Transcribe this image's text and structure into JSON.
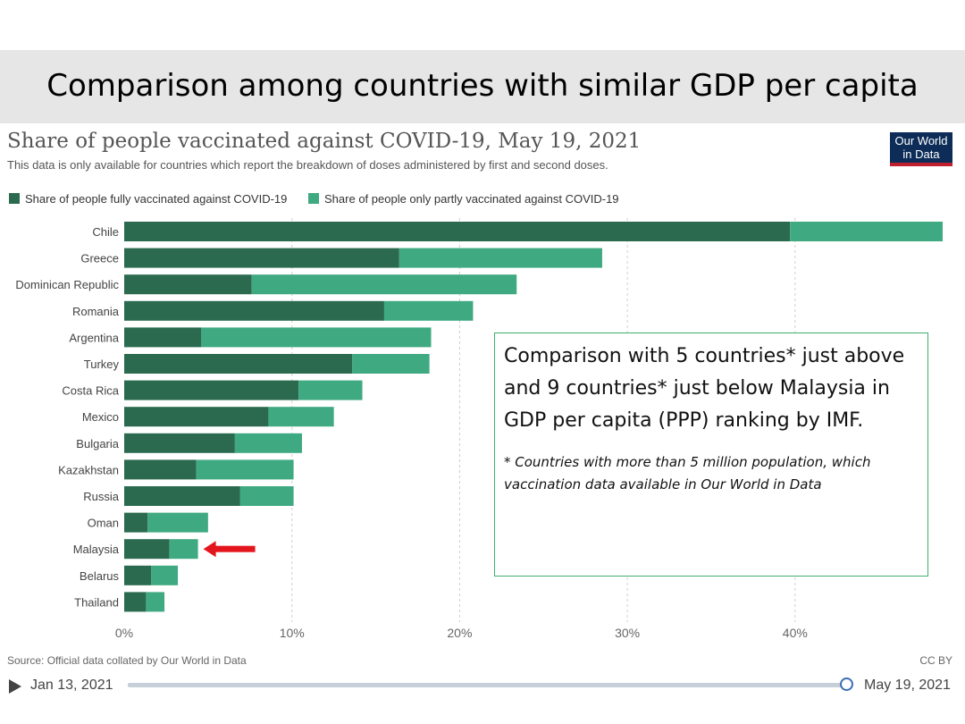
{
  "slide": {
    "title": "Comparison among countries with similar GDP per capita"
  },
  "chart_header": {
    "title": "Share of people vaccinated against COVID-19, May 19, 2021",
    "subtitle": "This data is only available for countries which report the breakdown of doses administered by first and second doses.",
    "logo_line1": "Our World",
    "logo_line2": "in Data",
    "logo_bg": "#0d2d58",
    "logo_stripe": "#c0202e"
  },
  "chart_data": {
    "type": "bar",
    "orientation": "horizontal",
    "stacked": true,
    "categories": [
      "Chile",
      "Greece",
      "Dominican Republic",
      "Romania",
      "Argentina",
      "Turkey",
      "Costa Rica",
      "Mexico",
      "Bulgaria",
      "Kazakhstan",
      "Russia",
      "Oman",
      "Malaysia",
      "Belarus",
      "Thailand"
    ],
    "series": [
      {
        "name": "Share of people fully vaccinated against COVID-19",
        "color": "#2b6a4f",
        "values": [
          39.7,
          16.4,
          7.6,
          15.5,
          4.6,
          13.6,
          10.4,
          8.6,
          6.6,
          4.3,
          6.9,
          1.4,
          2.7,
          1.6,
          1.3
        ]
      },
      {
        "name": "Share of people only partly vaccinated against COVID-19",
        "color": "#3fa982",
        "values": [
          9.1,
          12.1,
          15.8,
          5.3,
          13.7,
          4.6,
          3.8,
          3.9,
          4.0,
          5.8,
          3.2,
          3.6,
          1.7,
          1.6,
          1.1
        ]
      }
    ],
    "x_ticks": [
      "0%",
      "10%",
      "20%",
      "30%",
      "40%"
    ],
    "x_tick_values": [
      0,
      10,
      20,
      30,
      40
    ],
    "xlim": [
      0,
      48.8
    ],
    "grid": "vertical dashed",
    "legend_position": "top-left",
    "highlight": {
      "category": "Malaysia",
      "marker": "red-arrow",
      "color": "#e3161d"
    }
  },
  "note": {
    "main": "Comparison with 5 countries* just above and 9 countries* just below Malaysia in GDP per capita (PPP) ranking by IMF.",
    "footnote": "* Countries with more than 5 million population, which vaccination data available in Our World in Data"
  },
  "footer": {
    "source": "Source: Official data collated by Our World in Data",
    "license": "CC BY"
  },
  "timeline": {
    "start_date": "Jan 13, 2021",
    "end_date": "May 19, 2021",
    "position": 1.0
  }
}
